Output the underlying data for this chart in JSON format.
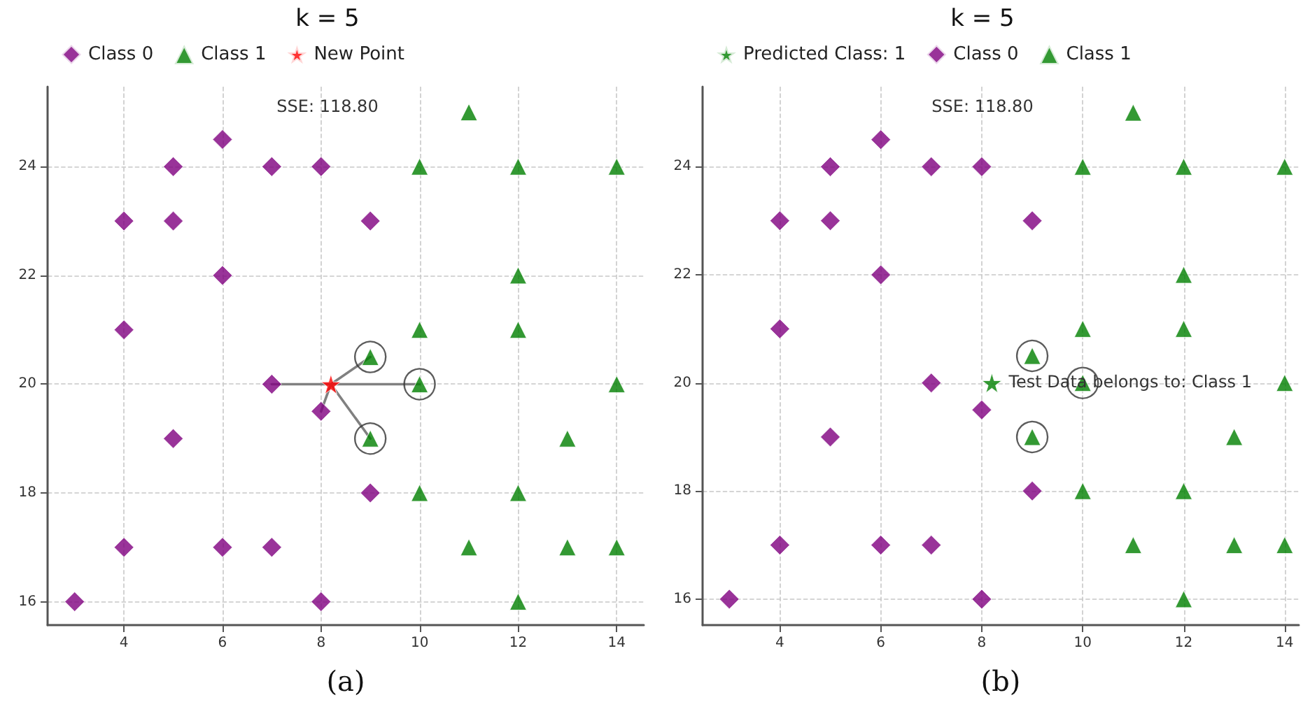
{
  "chart_data": [
    {
      "type": "scatter",
      "title": "k = 5",
      "xlabel": "(a)",
      "annotations": [
        "SSE: 118.80"
      ],
      "xlim": [
        2.45,
        14.55
      ],
      "ylim": [
        15.57,
        25.47
      ],
      "xticks": [
        4,
        6,
        8,
        10,
        12,
        14
      ],
      "yticks": [
        16,
        18,
        20,
        22,
        24
      ],
      "grid": true,
      "legend": "top left",
      "series": [
        {
          "type": "line",
          "color": "#808080",
          "marker": "none",
          "x": [
            7,
            8.2,
            10,
            8.2,
            9,
            8.2,
            9,
            8.2,
            8
          ],
          "values": [
            20,
            20,
            20,
            20,
            20.5,
            20,
            19,
            20,
            19.5
          ]
        },
        {
          "name": "Class 0",
          "color": "#800080",
          "marker": "diamond",
          "x": [
            3,
            4,
            4,
            4,
            5,
            5,
            5,
            6,
            6,
            6,
            7,
            7,
            7,
            8,
            8,
            8,
            9,
            9
          ],
          "values": [
            16,
            17,
            21,
            23,
            19,
            23,
            24,
            17,
            22,
            24.5,
            17,
            20,
            24,
            16,
            19.5,
            24,
            18,
            23
          ]
        },
        {
          "name": "Class 1",
          "color": "#008000",
          "marker": "triangle",
          "x": [
            9,
            9,
            10,
            10,
            10,
            10,
            11,
            11,
            12,
            12,
            12,
            12,
            12,
            13,
            13,
            14,
            14,
            14
          ],
          "values": [
            19,
            20.5,
            18,
            20,
            21,
            24,
            17,
            25,
            16,
            18,
            21,
            22,
            24,
            17,
            19,
            17,
            20,
            24
          ]
        },
        {
          "name": "New Point",
          "color": "#ff0000",
          "marker": "star",
          "x": [
            8.2
          ],
          "values": [
            20
          ]
        },
        {
          "type": "scatter",
          "color": "#333333",
          "marker": "circle",
          "x": [
            9,
            10,
            9
          ],
          "values": [
            20.5,
            20,
            19
          ]
        }
      ]
    },
    {
      "type": "scatter",
      "title": "k = 5",
      "xlabel": "(b)",
      "annotations": [
        "SSE: 118.80",
        {
          "text": "Test Data belongs to: Class 1",
          "x": 8.2,
          "y": 20
        }
      ],
      "xlim": [
        2.47,
        14.28
      ],
      "ylim": [
        15.52,
        25.48
      ],
      "xticks": [
        4,
        6,
        8,
        10,
        12,
        14
      ],
      "yticks": [
        16,
        18,
        20,
        22,
        24
      ],
      "grid": true,
      "legend": "top left",
      "series": [
        {
          "name": "Predicted Class: 1",
          "color": "#008000",
          "marker": "star",
          "x": [
            8.2
          ],
          "values": [
            20
          ]
        },
        {
          "name": "Class 0",
          "color": "#800080",
          "marker": "diamond",
          "x": [
            3,
            4,
            4,
            4,
            5,
            5,
            5,
            6,
            6,
            6,
            7,
            7,
            7,
            8,
            8,
            8,
            9,
            9
          ],
          "values": [
            16,
            17,
            21,
            23,
            19,
            23,
            24,
            17,
            22,
            24.5,
            17,
            20,
            24,
            16,
            19.5,
            24,
            18,
            23
          ]
        },
        {
          "name": "Class 1",
          "color": "#008000",
          "marker": "triangle",
          "x": [
            9,
            9,
            10,
            10,
            10,
            10,
            11,
            11,
            12,
            12,
            12,
            12,
            12,
            13,
            13,
            14,
            14,
            14
          ],
          "values": [
            19,
            20.5,
            18,
            20,
            21,
            24,
            17,
            25,
            16,
            18,
            21,
            22,
            24,
            17,
            19,
            17,
            20,
            24
          ]
        },
        {
          "type": "scatter",
          "color": "#333333",
          "marker": "circle",
          "x": [
            9,
            10,
            9
          ],
          "values": [
            20.5,
            20,
            19
          ]
        }
      ]
    }
  ]
}
